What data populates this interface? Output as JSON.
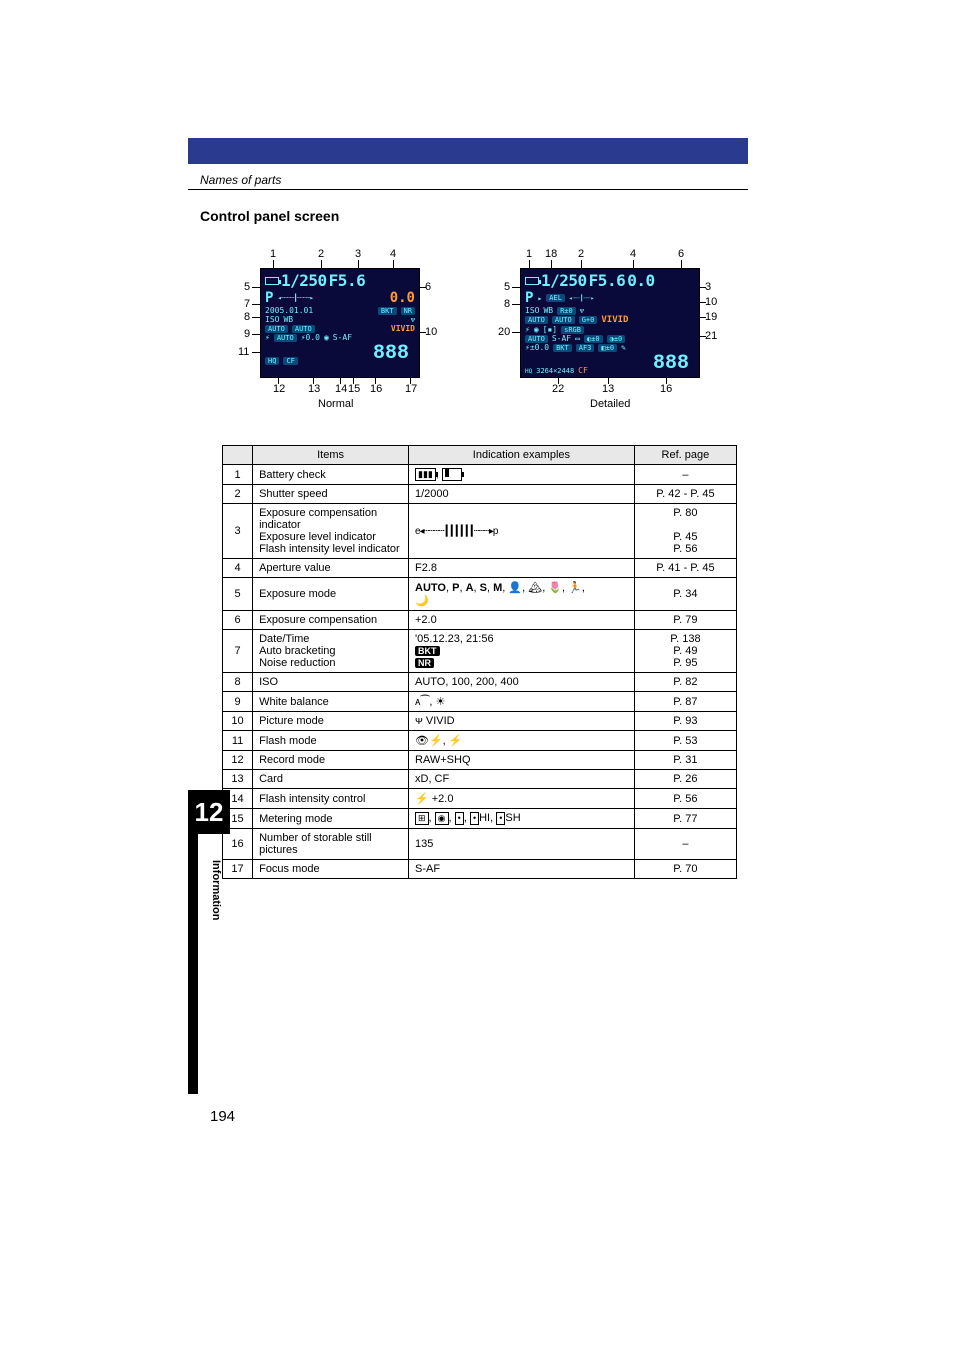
{
  "breadcrumb": "Names of parts",
  "section_title": "Control panel screen",
  "diagram": {
    "normal_caption": "Normal",
    "detailed_caption": "Detailed",
    "normal_callouts_top": [
      "1",
      "2",
      "3",
      "4"
    ],
    "normal_callouts_left": [
      "5",
      "7",
      "8",
      "9",
      "11"
    ],
    "normal_callouts_right": [
      "6",
      "10"
    ],
    "normal_callouts_bottom": [
      "12",
      "13",
      "14",
      "15",
      "16",
      "17"
    ],
    "detailed_callouts_top": [
      "1",
      "18",
      "2",
      "4",
      "6"
    ],
    "detailed_callouts_left": [
      "5",
      "8",
      "20"
    ],
    "detailed_callouts_right": [
      "3",
      "10",
      "19",
      "21"
    ],
    "detailed_callouts_bottom": [
      "22",
      "13",
      "16"
    ],
    "panel_shutter": "1/250",
    "panel_fstop": "F5.6",
    "panel_ec": "0.0",
    "panel_mode": "P",
    "panel_date": "2005.01.01",
    "panel_iso": "ISO",
    "panel_wb": "WB",
    "panel_auto": "AUTO",
    "panel_vivid": "VIVID",
    "panel_saf": "S-AF",
    "panel_hq": "HQ",
    "panel_cf": "CF",
    "panel_num": "888",
    "panel_fic": "0.0",
    "panel_bkt": "BKT",
    "panel_nr": "NR",
    "panel_srgb": "sRGB",
    "panel_size": "3264×2448",
    "panel_r": "R±0",
    "panel_g": "G+0",
    "panel_flash": "±0.0",
    "panel_af3": "AF3"
  },
  "table": {
    "headers": {
      "items": "Items",
      "indication": "Indication examples",
      "ref": "Ref. page"
    },
    "rows": [
      {
        "n": "1",
        "item": "Battery check",
        "ind_type": "battery",
        "ref": "–"
      },
      {
        "n": "2",
        "item": "Shutter speed",
        "ind": "1/2000",
        "ref": "P. 42  -  P. 45"
      },
      {
        "n": "3",
        "item_lines": [
          "Exposure compensation indicator",
          "Exposure level indicator",
          "Flash intensity level indicator"
        ],
        "ind_type": "exp_bar",
        "ref_lines": [
          "P. 80",
          "",
          "P. 45",
          "P. 56"
        ]
      },
      {
        "n": "4",
        "item": "Aperture value",
        "ind": "F2.8",
        "ref": "P. 41  -  P. 45"
      },
      {
        "n": "5",
        "item": "Exposure mode",
        "ind_type": "modes",
        "ref": "P. 34"
      },
      {
        "n": "6",
        "item": "Exposure compensation",
        "ind": "+2.0",
        "ref": "P. 79"
      },
      {
        "n": "7",
        "item_lines": [
          "Date/Time",
          "Auto bracketing",
          "Noise reduction"
        ],
        "ind_type": "date_bkt",
        "ref_lines": [
          "P. 138",
          "P. 49",
          "P. 95"
        ]
      },
      {
        "n": "8",
        "item": "ISO",
        "ind": "AUTO, 100, 200, 400",
        "ref": "P. 82"
      },
      {
        "n": "9",
        "item": "White balance",
        "ind_type": "wb",
        "ref": "P. 87"
      },
      {
        "n": "10",
        "item": "Picture mode",
        "ind_type": "picmode",
        "ref": "P. 93"
      },
      {
        "n": "11",
        "item": "Flash mode",
        "ind_type": "flashmode",
        "ref": "P. 53"
      },
      {
        "n": "12",
        "item": "Record mode",
        "ind": "RAW+SHQ",
        "ref": "P. 31"
      },
      {
        "n": "13",
        "item": "Card",
        "ind": "xD, CF",
        "ref": "P. 26"
      },
      {
        "n": "14",
        "item": "Flash intensity control",
        "ind_type": "fic",
        "ref": "P. 56"
      },
      {
        "n": "15",
        "item": "Metering mode",
        "ind_type": "metering",
        "ref": "P. 77"
      },
      {
        "n": "16",
        "item": "Number of storable still pictures",
        "ind": "135",
        "ref": "–"
      },
      {
        "n": "17",
        "item": "Focus mode",
        "ind": "S-AF",
        "ref": "P. 70"
      }
    ]
  },
  "side": {
    "chapter": "12",
    "label": "Information",
    "page": "194"
  },
  "colors": {
    "header_bar": "#2a3a8f",
    "panel_bg": "#0a0a3a",
    "panel_fg": "#6ef0ff",
    "panel_accent": "#ff9a3a",
    "table_header_bg": "#e8e8e8"
  }
}
